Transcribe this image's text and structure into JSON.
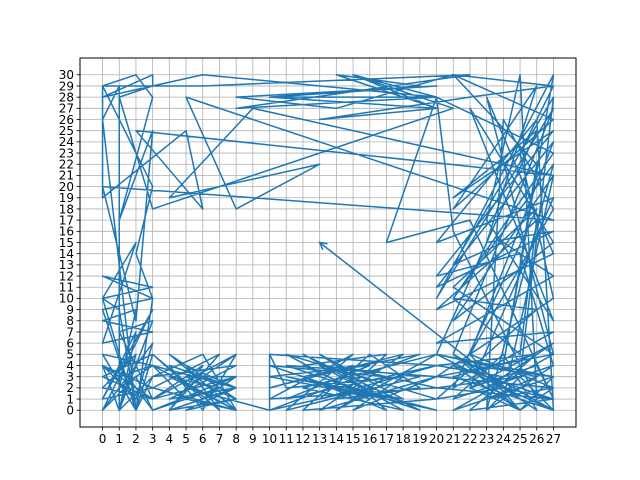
{
  "chart_data": {
    "type": "line",
    "title": "",
    "xlabel": "",
    "ylabel": "",
    "xlim": [
      -1.35,
      28.35
    ],
    "ylim": [
      -1.5,
      31.5
    ],
    "xticks": [
      0,
      1,
      2,
      3,
      4,
      5,
      6,
      7,
      8,
      9,
      10,
      11,
      12,
      13,
      14,
      15,
      16,
      17,
      18,
      19,
      20,
      21,
      22,
      23,
      24,
      25,
      26,
      27
    ],
    "yticks": [
      0,
      1,
      2,
      3,
      4,
      5,
      6,
      7,
      8,
      9,
      10,
      11,
      12,
      13,
      14,
      15,
      16,
      17,
      18,
      19,
      20,
      21,
      22,
      23,
      24,
      25,
      26,
      27,
      28,
      29,
      30
    ],
    "grid": true,
    "arrow_at_end": true,
    "series": [
      {
        "color": "#1f77b4",
        "points": [
          [
            27,
            29
          ],
          [
            25,
            23
          ],
          [
            27,
            10
          ],
          [
            20,
            3
          ],
          [
            27,
            2
          ],
          [
            25,
            0
          ],
          [
            21,
            5
          ],
          [
            27,
            27
          ],
          [
            20,
            10
          ],
          [
            27,
            30
          ],
          [
            24,
            4
          ],
          [
            26,
            22
          ],
          [
            21,
            30
          ],
          [
            27,
            26
          ],
          [
            21,
            18
          ],
          [
            26,
            29
          ],
          [
            23,
            15
          ],
          [
            27,
            16
          ],
          [
            20,
            11
          ],
          [
            27,
            24
          ],
          [
            22,
            5
          ],
          [
            27,
            18
          ],
          [
            24,
            26
          ],
          [
            23,
            0
          ],
          [
            27,
            22
          ],
          [
            21,
            10
          ],
          [
            25,
            5
          ],
          [
            26,
            17
          ],
          [
            20,
            9
          ],
          [
            27,
            14
          ],
          [
            23,
            28
          ],
          [
            27,
            5
          ],
          [
            21,
            11
          ],
          [
            26,
            18
          ],
          [
            21,
            2
          ],
          [
            27,
            7
          ],
          [
            20,
            6
          ],
          [
            27,
            12
          ],
          [
            24,
            15
          ],
          [
            21,
            13
          ],
          [
            27,
            28
          ],
          [
            25,
            3
          ],
          [
            27,
            0
          ],
          [
            26,
            26
          ],
          [
            20,
            15
          ],
          [
            27,
            19
          ],
          [
            22,
            2
          ],
          [
            25,
            0
          ],
          [
            27,
            3
          ],
          [
            20,
            5
          ],
          [
            26,
            25
          ],
          [
            21,
            19
          ],
          [
            27,
            25
          ],
          [
            20,
            12
          ],
          [
            25,
            14
          ],
          [
            27,
            4
          ],
          [
            24,
            1
          ],
          [
            27,
            21
          ],
          [
            21,
            8
          ],
          [
            27,
            15
          ],
          [
            22,
            27
          ],
          [
            27,
            8
          ],
          [
            23,
            17
          ],
          [
            25,
            30
          ],
          [
            26,
            1
          ],
          [
            21,
            16
          ],
          [
            20,
            28
          ],
          [
            27,
            23
          ],
          [
            21,
            10
          ],
          [
            26,
            9
          ],
          [
            20,
            1
          ],
          [
            24,
            2
          ],
          [
            27,
            1
          ],
          [
            22,
            17
          ],
          [
            17,
            15
          ],
          [
            20,
            28
          ],
          [
            10,
            28
          ],
          [
            20,
            29
          ],
          [
            8,
            28
          ],
          [
            14,
            27
          ],
          [
            21,
            30
          ],
          [
            27,
            29
          ],
          [
            22,
            28
          ],
          [
            13,
            26
          ],
          [
            20,
            27
          ],
          [
            14,
            30
          ],
          [
            19,
            29
          ],
          [
            10,
            28
          ],
          [
            20,
            27
          ],
          [
            15,
            30
          ],
          [
            20,
            28
          ],
          [
            6,
            30
          ],
          [
            0,
            28
          ],
          [
            3,
            30
          ],
          [
            3,
            29
          ],
          [
            1,
            28
          ],
          [
            3,
            18
          ],
          [
            21,
            27
          ],
          [
            15,
            30
          ],
          [
            20,
            28
          ],
          [
            8,
            27
          ],
          [
            22,
            30
          ],
          [
            6,
            29
          ],
          [
            0,
            29
          ],
          [
            2,
            30
          ],
          [
            3,
            28
          ],
          [
            1,
            17
          ],
          [
            3,
            25
          ],
          [
            2,
            8
          ],
          [
            0,
            20
          ],
          [
            27,
            17
          ],
          [
            5,
            28
          ],
          [
            8,
            18
          ],
          [
            13,
            22
          ],
          [
            4,
            19
          ],
          [
            9,
            27
          ],
          [
            27,
            21
          ],
          [
            2,
            25
          ],
          [
            6,
            18
          ],
          [
            5,
            25
          ],
          [
            0,
            19
          ],
          [
            0,
            29
          ],
          [
            3,
            20
          ],
          [
            2,
            14
          ],
          [
            3,
            10
          ],
          [
            0,
            12
          ],
          [
            3,
            11
          ],
          [
            0,
            10
          ],
          [
            2,
            0
          ],
          [
            3,
            10
          ],
          [
            0,
            9
          ],
          [
            2,
            0
          ],
          [
            3,
            5
          ],
          [
            0,
            3
          ],
          [
            3,
            1
          ],
          [
            1,
            7
          ],
          [
            3,
            8
          ],
          [
            1,
            0
          ],
          [
            2,
            5
          ],
          [
            0,
            2
          ],
          [
            3,
            1
          ],
          [
            0,
            4
          ],
          [
            1,
            0
          ],
          [
            1,
            29
          ],
          [
            0,
            26
          ],
          [
            2,
            0
          ],
          [
            1,
            9
          ],
          [
            0,
            10
          ],
          [
            2,
            15
          ],
          [
            0,
            6
          ],
          [
            3,
            7
          ],
          [
            0,
            8
          ],
          [
            2,
            9
          ],
          [
            1,
            2
          ],
          [
            3,
            4
          ],
          [
            0,
            5
          ],
          [
            2,
            0
          ],
          [
            3,
            3
          ],
          [
            1,
            0
          ],
          [
            2,
            7
          ],
          [
            0,
            1
          ],
          [
            3,
            9
          ],
          [
            0,
            0
          ],
          [
            2,
            3
          ],
          [
            3,
            0
          ],
          [
            1,
            4
          ],
          [
            0,
            1
          ],
          [
            3,
            2
          ],
          [
            0,
            4
          ],
          [
            2,
            1
          ],
          [
            3,
            6
          ],
          [
            0,
            0
          ],
          [
            1,
            3
          ],
          [
            3,
            4
          ],
          [
            8,
            0
          ],
          [
            4,
            5
          ],
          [
            8,
            1
          ],
          [
            5,
            0
          ],
          [
            8,
            2
          ],
          [
            4,
            4
          ],
          [
            6,
            0
          ],
          [
            8,
            5
          ],
          [
            3,
            1
          ],
          [
            8,
            3
          ],
          [
            5,
            3
          ],
          [
            8,
            1
          ],
          [
            4,
            0
          ],
          [
            7,
            5
          ],
          [
            3,
            2
          ],
          [
            8,
            0
          ],
          [
            6,
            5
          ],
          [
            3,
            3
          ],
          [
            8,
            4
          ],
          [
            4,
            1
          ],
          [
            8,
            2
          ],
          [
            5,
            4
          ],
          [
            7,
            0
          ],
          [
            3,
            5
          ],
          [
            6,
            1
          ],
          [
            8,
            3
          ],
          [
            3,
            0
          ],
          [
            7,
            2
          ],
          [
            4,
            3
          ],
          [
            8,
            0
          ],
          [
            5,
            1
          ],
          [
            3,
            4
          ],
          [
            8,
            2
          ],
          [
            4,
            0
          ],
          [
            6,
            4
          ],
          [
            3,
            1
          ],
          [
            8,
            5
          ],
          [
            5,
            2
          ],
          [
            10,
            0
          ],
          [
            10,
            5
          ],
          [
            20,
            4
          ],
          [
            11,
            1
          ],
          [
            16,
            4
          ],
          [
            10,
            3
          ],
          [
            17,
            1
          ],
          [
            12,
            5
          ],
          [
            19,
            0
          ],
          [
            11,
            4
          ],
          [
            20,
            3
          ],
          [
            13,
            0
          ],
          [
            18,
            5
          ],
          [
            10,
            2
          ],
          [
            15,
            4
          ],
          [
            12,
            0
          ],
          [
            20,
            1
          ],
          [
            11,
            5
          ],
          [
            16,
            1
          ],
          [
            10,
            4
          ],
          [
            17,
            3
          ],
          [
            14,
            0
          ],
          [
            20,
            5
          ],
          [
            12,
            2
          ],
          [
            18,
            0
          ],
          [
            13,
            4
          ],
          [
            19,
            3
          ],
          [
            11,
            0
          ],
          [
            15,
            5
          ],
          [
            10,
            1
          ],
          [
            20,
            2
          ],
          [
            14,
            4
          ],
          [
            17,
            0
          ],
          [
            12,
            3
          ],
          [
            19,
            5
          ],
          [
            10,
            0
          ],
          [
            16,
            2
          ],
          [
            13,
            5
          ],
          [
            18,
            1
          ],
          [
            11,
            3
          ],
          [
            20,
            0
          ],
          [
            15,
            2
          ],
          [
            12,
            4
          ],
          [
            17,
            5
          ],
          [
            14,
            1
          ],
          [
            19,
            2
          ],
          [
            16,
            5
          ],
          [
            13,
            1
          ],
          [
            20,
            4
          ],
          [
            10,
            5
          ],
          [
            11,
            2
          ],
          [
            18,
            3
          ],
          [
            15,
            0
          ],
          [
            20,
            3
          ],
          [
            27,
            5
          ],
          [
            21,
            0
          ],
          [
            27,
            3
          ],
          [
            22,
            4
          ],
          [
            26,
            0
          ],
          [
            24,
            5
          ],
          [
            21,
            1
          ],
          [
            27,
            4
          ],
          [
            23,
            0
          ],
          [
            25,
            3
          ],
          [
            20,
            2
          ],
          [
            27,
            1
          ],
          [
            22,
            0
          ],
          [
            26,
            5
          ],
          [
            21,
            3
          ],
          [
            27,
            0
          ],
          [
            24,
            2
          ],
          [
            20,
            5
          ],
          [
            26,
            3
          ],
          [
            23,
            1
          ],
          [
            27,
            2
          ],
          [
            22,
            5
          ],
          [
            25,
            0
          ],
          [
            21,
            4
          ],
          [
            27,
            1
          ],
          [
            26,
            4
          ],
          [
            22,
            2
          ],
          [
            27,
            6
          ],
          [
            24,
            3
          ],
          [
            20,
            4
          ],
          [
            26,
            5
          ],
          [
            23,
            2
          ],
          [
            27,
            0
          ],
          [
            21,
            5
          ],
          [
            25,
            1
          ],
          [
            13,
            15
          ]
        ]
      }
    ]
  }
}
